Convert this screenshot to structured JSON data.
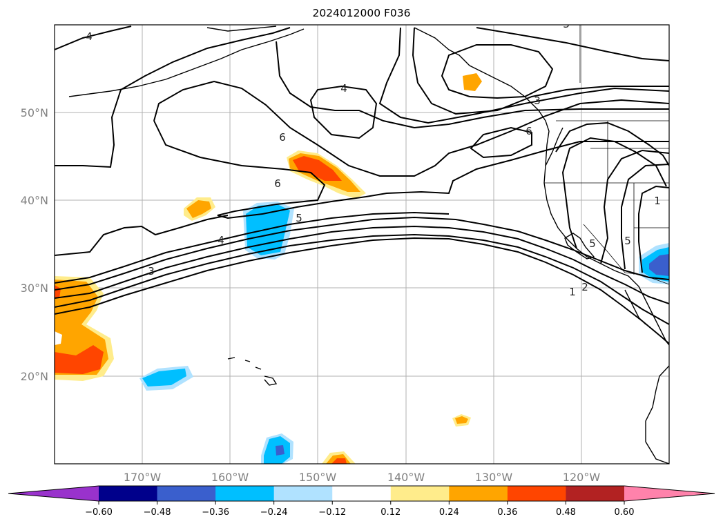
{
  "title": "2024012000 F036",
  "map": {
    "lat_labels": [
      "50°N",
      "40°N",
      "30°N",
      "20°N"
    ],
    "lon_labels": [
      "170°W",
      "160°W",
      "150°W",
      "140°W",
      "130°W",
      "120°W"
    ],
    "contour_labels": [
      "4",
      "4",
      "6",
      "6",
      "3",
      "6",
      "5",
      "4",
      "3",
      "5",
      "5",
      "2",
      "1",
      "3",
      "1"
    ]
  },
  "colorbar": {
    "tick_labels": [
      "−0.60",
      "−0.48",
      "−0.36",
      "−0.24",
      "−0.12",
      "0.12",
      "0.24",
      "0.36",
      "0.48",
      "0.60"
    ],
    "colors": [
      "#9932cc",
      "#00008b",
      "#3a5fcd",
      "#00bfff",
      "#b0e2ff",
      "#ffffff",
      "#ffec8b",
      "#ffa500",
      "#ff4500",
      "#b22222",
      "#ff82ab"
    ]
  }
}
